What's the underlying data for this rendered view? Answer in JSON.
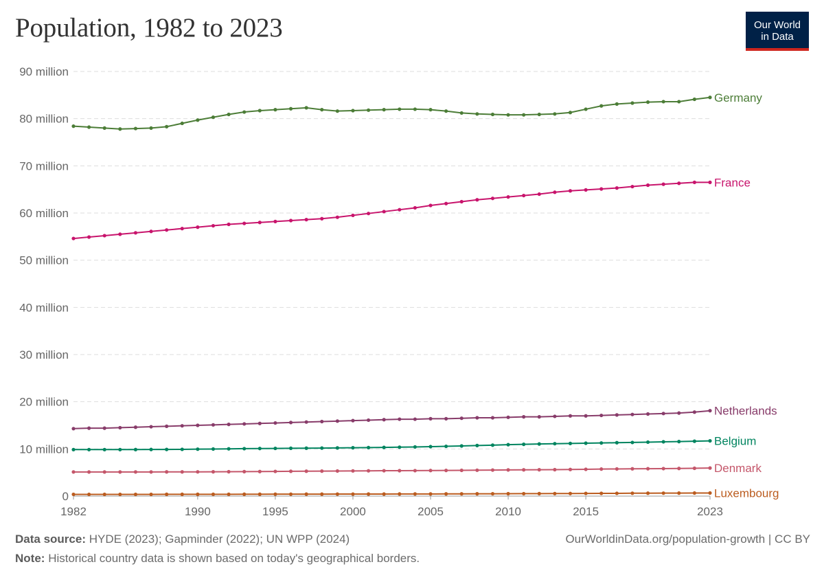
{
  "header": {
    "title": "Population, 1982 to 2023",
    "logo_line1": "Our World",
    "logo_line2": "in Data"
  },
  "footer": {
    "source_label": "Data source:",
    "source_text": "HYDE (2023); Gapminder (2022); UN WPP (2024)",
    "note_label": "Note:",
    "note_text": "Historical country data is shown based on today's geographical borders.",
    "url": "OurWorldinData.org/population-growth | CC BY"
  },
  "chart_data": {
    "type": "line",
    "title": "Population, 1982 to 2023",
    "xlabel": "",
    "ylabel": "",
    "xlim": [
      1982,
      2023
    ],
    "ylim": [
      0,
      90000000
    ],
    "x_ticks": [
      1982,
      1990,
      1995,
      2000,
      2005,
      2010,
      2015,
      2023
    ],
    "y_ticks": [
      {
        "value": 0,
        "label": "0"
      },
      {
        "value": 10000000,
        "label": "10 million"
      },
      {
        "value": 20000000,
        "label": "20 million"
      },
      {
        "value": 30000000,
        "label": "30 million"
      },
      {
        "value": 40000000,
        "label": "40 million"
      },
      {
        "value": 50000000,
        "label": "50 million"
      },
      {
        "value": 60000000,
        "label": "60 million"
      },
      {
        "value": 70000000,
        "label": "70 million"
      },
      {
        "value": 80000000,
        "label": "80 million"
      },
      {
        "value": 90000000,
        "label": "90 million"
      }
    ],
    "grid": true,
    "legend": "line-end labels",
    "x": [
      1982,
      1983,
      1984,
      1985,
      1986,
      1987,
      1988,
      1989,
      1990,
      1991,
      1992,
      1993,
      1994,
      1995,
      1996,
      1997,
      1998,
      1999,
      2000,
      2001,
      2002,
      2003,
      2004,
      2005,
      2006,
      2007,
      2008,
      2009,
      2010,
      2011,
      2012,
      2013,
      2014,
      2015,
      2016,
      2017,
      2018,
      2019,
      2020,
      2021,
      2022,
      2023
    ],
    "series": [
      {
        "name": "Germany",
        "color": "#4c7d37",
        "values": [
          78.4,
          78.2,
          78.0,
          77.8,
          77.9,
          78.0,
          78.3,
          79.0,
          79.7,
          80.3,
          80.9,
          81.4,
          81.7,
          81.9,
          82.1,
          82.3,
          81.9,
          81.6,
          81.7,
          81.8,
          81.9,
          82.0,
          82.0,
          81.9,
          81.6,
          81.2,
          81.0,
          80.9,
          80.8,
          80.8,
          80.9,
          81.0,
          81.3,
          82.0,
          82.7,
          83.1,
          83.3,
          83.5,
          83.6,
          83.6,
          84.1,
          84.5
        ]
      },
      {
        "name": "France",
        "color": "#c8146c",
        "values": [
          54.6,
          54.9,
          55.2,
          55.5,
          55.8,
          56.1,
          56.4,
          56.7,
          57.0,
          57.3,
          57.6,
          57.8,
          58.0,
          58.2,
          58.4,
          58.6,
          58.8,
          59.1,
          59.5,
          59.9,
          60.3,
          60.7,
          61.1,
          61.6,
          62.0,
          62.4,
          62.8,
          63.1,
          63.4,
          63.7,
          64.0,
          64.4,
          64.7,
          64.9,
          65.1,
          65.3,
          65.6,
          65.9,
          66.1,
          66.3,
          66.5,
          66.5
        ]
      },
      {
        "name": "Netherlands",
        "color": "#883c6a",
        "values": [
          14.3,
          14.4,
          14.4,
          14.5,
          14.6,
          14.7,
          14.8,
          14.9,
          15.0,
          15.1,
          15.2,
          15.3,
          15.4,
          15.5,
          15.6,
          15.7,
          15.8,
          15.9,
          16.0,
          16.1,
          16.2,
          16.3,
          16.3,
          16.4,
          16.4,
          16.5,
          16.6,
          16.6,
          16.7,
          16.8,
          16.8,
          16.9,
          17.0,
          17.0,
          17.1,
          17.2,
          17.3,
          17.4,
          17.5,
          17.6,
          17.8,
          18.1
        ]
      },
      {
        "name": "Belgium",
        "color": "#00845f",
        "values": [
          9.86,
          9.86,
          9.86,
          9.86,
          9.87,
          9.88,
          9.89,
          9.91,
          9.95,
          9.98,
          10.02,
          10.06,
          10.09,
          10.11,
          10.14,
          10.16,
          10.18,
          10.21,
          10.25,
          10.28,
          10.32,
          10.37,
          10.42,
          10.48,
          10.55,
          10.63,
          10.72,
          10.8,
          10.9,
          10.98,
          11.05,
          11.11,
          11.16,
          11.21,
          11.26,
          11.32,
          11.37,
          11.44,
          11.51,
          11.56,
          11.63,
          11.71
        ]
      },
      {
        "name": "Denmark",
        "color": "#c4566a",
        "values": [
          5.12,
          5.11,
          5.11,
          5.11,
          5.12,
          5.12,
          5.13,
          5.13,
          5.14,
          5.15,
          5.17,
          5.19,
          5.21,
          5.23,
          5.26,
          5.28,
          5.3,
          5.32,
          5.34,
          5.36,
          5.38,
          5.39,
          5.4,
          5.42,
          5.44,
          5.46,
          5.49,
          5.52,
          5.55,
          5.57,
          5.59,
          5.61,
          5.64,
          5.68,
          5.73,
          5.76,
          5.79,
          5.81,
          5.83,
          5.86,
          5.9,
          5.95
        ]
      },
      {
        "name": "Luxembourg",
        "color": "#bb5c1f",
        "values": [
          0.37,
          0.37,
          0.37,
          0.37,
          0.37,
          0.37,
          0.38,
          0.38,
          0.38,
          0.39,
          0.39,
          0.4,
          0.4,
          0.41,
          0.41,
          0.42,
          0.42,
          0.43,
          0.43,
          0.44,
          0.44,
          0.45,
          0.46,
          0.46,
          0.47,
          0.48,
          0.49,
          0.5,
          0.51,
          0.52,
          0.53,
          0.54,
          0.55,
          0.57,
          0.58,
          0.59,
          0.61,
          0.62,
          0.63,
          0.64,
          0.65,
          0.66
        ]
      }
    ]
  }
}
